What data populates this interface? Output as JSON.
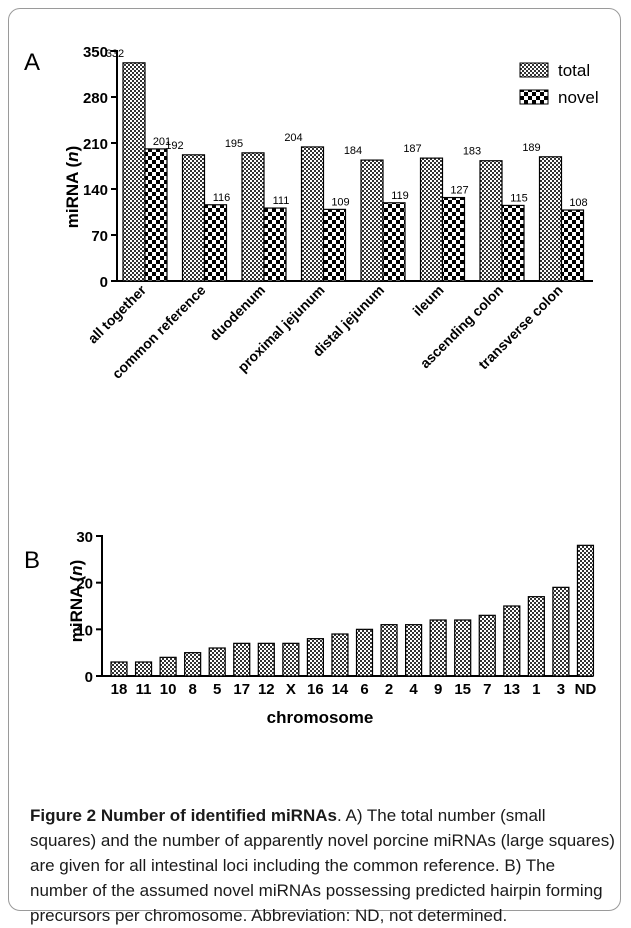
{
  "chart_data": [
    {
      "panel_label": "A",
      "type": "bar",
      "ylabel": "miRNA (",
      "ylabel_italic": "n",
      "ylabel_close": ")",
      "ylim": [
        0,
        350
      ],
      "yticks": [
        "0",
        "70",
        "140",
        "210",
        "280",
        "350"
      ],
      "legend_position": "top-right",
      "categories": [
        "all together",
        "common reference",
        "duodenum",
        "proximal jejunum",
        "distal jejunum",
        "ileum",
        "ascending colon",
        "transverse colon"
      ],
      "series": [
        {
          "name": "total",
          "pattern": "small-squares",
          "values": [
            332,
            192,
            195,
            204,
            184,
            187,
            183,
            189
          ]
        },
        {
          "name": "novel",
          "pattern": "large-squares",
          "values": [
            201,
            116,
            111,
            109,
            119,
            127,
            115,
            108
          ]
        }
      ],
      "data_labels": true
    },
    {
      "panel_label": "B",
      "type": "bar",
      "xlabel": "chromosome",
      "ylabel": "miRNA (",
      "ylabel_italic": "n",
      "ylabel_close": ")",
      "ylim": [
        0,
        30
      ],
      "yticks": [
        "0",
        "10",
        "20",
        "30"
      ],
      "categories": [
        "18",
        "11",
        "10",
        "8",
        "5",
        "17",
        "12",
        "X",
        "16",
        "14",
        "6",
        "2",
        "4",
        "9",
        "15",
        "7",
        "13",
        "1",
        "3",
        "ND"
      ],
      "values": [
        3,
        3,
        4,
        5,
        6,
        7,
        7,
        7,
        8,
        9,
        10,
        11,
        11,
        12,
        12,
        13,
        15,
        17,
        19,
        28
      ]
    }
  ],
  "caption": {
    "title": "Figure 2 Number of identified miRNAs",
    "text": ". A) The total number (small squares) and the number of apparently novel porcine miRNAs (large squares) are given for all intestinal loci including the common reference. B) The number of the assumed novel miRNAs possessing predicted hairpin forming precursors per chromosome. Abbreviation: ND, not determined."
  }
}
